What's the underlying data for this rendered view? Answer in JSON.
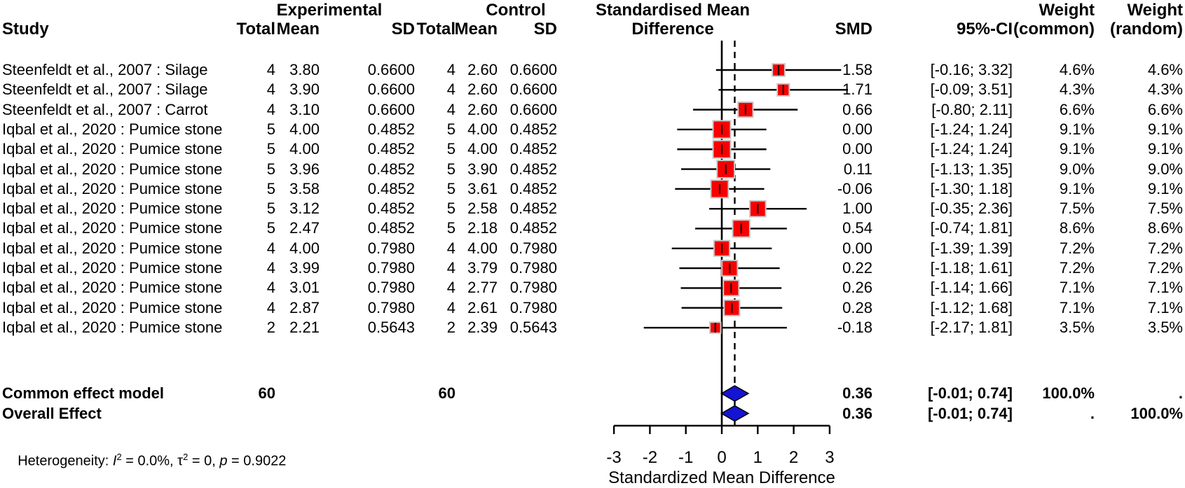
{
  "header": {
    "study": "Study",
    "group_experimental": "Experimental",
    "group_control": "Control",
    "exp_total": "Total",
    "exp_mean": "Mean",
    "exp_sd": "SD",
    "ctl_total": "Total",
    "ctl_mean": "Mean",
    "ctl_sd": "SD",
    "effect_line1": "Standardised Mean",
    "effect_line2": "Difference",
    "smd": "SMD",
    "ci": "95%-CI",
    "weight_common_line1": "Weight",
    "weight_common_line2": "(common)",
    "weight_random_line1": "Weight",
    "weight_random_line2": "(random)"
  },
  "chart_data": {
    "type": "forest",
    "effect_measure": "Standardised Mean Difference",
    "axis": {
      "ticks": [
        -3,
        -2,
        -1,
        0,
        1,
        2,
        3
      ],
      "tick_labels": [
        "-3",
        "-2",
        "-1",
        "0",
        "1",
        "2",
        "3"
      ],
      "label": "Standardized Mean Difference",
      "range": [
        -3,
        3
      ],
      "reference_line": 0,
      "dashed_line_at": 0.36
    },
    "colors": {
      "square": "#f80000",
      "square_border": "#c9c9c9",
      "diamond": "#1414d2",
      "line": "#000000",
      "text": "#000000"
    },
    "rows": [
      {
        "study": "Steenfeldt et al., 2007 : Silage",
        "exp_total": "4",
        "exp_mean": "3.80",
        "exp_sd": "0.6600",
        "ctl_total": "4",
        "ctl_mean": "2.60",
        "ctl_sd": "0.6600",
        "smd_text": "1.58",
        "ci_text": "[-0.16; 3.32]",
        "w_common": "4.6%",
        "w_random": "4.6%",
        "smd": 1.58,
        "lo": -0.16,
        "hi": 3.32,
        "weight": 4.6
      },
      {
        "study": "Steenfeldt et al., 2007 : Silage",
        "exp_total": "4",
        "exp_mean": "3.90",
        "exp_sd": "0.6600",
        "ctl_total": "4",
        "ctl_mean": "2.60",
        "ctl_sd": "0.6600",
        "smd_text": "1.71",
        "ci_text": "[-0.09; 3.51]",
        "w_common": "4.3%",
        "w_random": "4.3%",
        "smd": 1.71,
        "lo": -0.09,
        "hi": 3.51,
        "weight": 4.3
      },
      {
        "study": "Steenfeldt et al., 2007 : Carrot",
        "exp_total": "4",
        "exp_mean": "3.10",
        "exp_sd": "0.6600",
        "ctl_total": "4",
        "ctl_mean": "2.60",
        "ctl_sd": "0.6600",
        "smd_text": "0.66",
        "ci_text": "[-0.80; 2.11]",
        "w_common": "6.6%",
        "w_random": "6.6%",
        "smd": 0.66,
        "lo": -0.8,
        "hi": 2.11,
        "weight": 6.6
      },
      {
        "study": "Iqbal et al., 2020 : Pumice stone",
        "exp_total": "5",
        "exp_mean": "4.00",
        "exp_sd": "0.4852",
        "ctl_total": "5",
        "ctl_mean": "4.00",
        "ctl_sd": "0.4852",
        "smd_text": "0.00",
        "ci_text": "[-1.24; 1.24]",
        "w_common": "9.1%",
        "w_random": "9.1%",
        "smd": 0.0,
        "lo": -1.24,
        "hi": 1.24,
        "weight": 9.1
      },
      {
        "study": "Iqbal et al., 2020 : Pumice stone",
        "exp_total": "5",
        "exp_mean": "4.00",
        "exp_sd": "0.4852",
        "ctl_total": "5",
        "ctl_mean": "4.00",
        "ctl_sd": "0.4852",
        "smd_text": "0.00",
        "ci_text": "[-1.24; 1.24]",
        "w_common": "9.1%",
        "w_random": "9.1%",
        "smd": 0.0,
        "lo": -1.24,
        "hi": 1.24,
        "weight": 9.1
      },
      {
        "study": "Iqbal et al., 2020 : Pumice stone",
        "exp_total": "5",
        "exp_mean": "3.96",
        "exp_sd": "0.4852",
        "ctl_total": "5",
        "ctl_mean": "3.90",
        "ctl_sd": "0.4852",
        "smd_text": "0.11",
        "ci_text": "[-1.13; 1.35]",
        "w_common": "9.0%",
        "w_random": "9.0%",
        "smd": 0.11,
        "lo": -1.13,
        "hi": 1.35,
        "weight": 9.0
      },
      {
        "study": "Iqbal et al., 2020 : Pumice stone",
        "exp_total": "5",
        "exp_mean": "3.58",
        "exp_sd": "0.4852",
        "ctl_total": "5",
        "ctl_mean": "3.61",
        "ctl_sd": "0.4852",
        "smd_text": "-0.06",
        "ci_text": "[-1.30; 1.18]",
        "w_common": "9.1%",
        "w_random": "9.1%",
        "smd": -0.06,
        "lo": -1.3,
        "hi": 1.18,
        "weight": 9.1
      },
      {
        "study": "Iqbal et al., 2020 : Pumice stone",
        "exp_total": "5",
        "exp_mean": "3.12",
        "exp_sd": "0.4852",
        "ctl_total": "5",
        "ctl_mean": "2.58",
        "ctl_sd": "0.4852",
        "smd_text": "1.00",
        "ci_text": "[-0.35; 2.36]",
        "w_common": "7.5%",
        "w_random": "7.5%",
        "smd": 1.0,
        "lo": -0.35,
        "hi": 2.36,
        "weight": 7.5
      },
      {
        "study": "Iqbal et al., 2020 : Pumice stone",
        "exp_total": "5",
        "exp_mean": "2.47",
        "exp_sd": "0.4852",
        "ctl_total": "5",
        "ctl_mean": "2.18",
        "ctl_sd": "0.4852",
        "smd_text": "0.54",
        "ci_text": "[-0.74; 1.81]",
        "w_common": "8.6%",
        "w_random": "8.6%",
        "smd": 0.54,
        "lo": -0.74,
        "hi": 1.81,
        "weight": 8.6
      },
      {
        "study": "Iqbal et al., 2020 : Pumice stone",
        "exp_total": "4",
        "exp_mean": "4.00",
        "exp_sd": "0.7980",
        "ctl_total": "4",
        "ctl_mean": "4.00",
        "ctl_sd": "0.7980",
        "smd_text": "0.00",
        "ci_text": "[-1.39; 1.39]",
        "w_common": "7.2%",
        "w_random": "7.2%",
        "smd": 0.0,
        "lo": -1.39,
        "hi": 1.39,
        "weight": 7.2
      },
      {
        "study": "Iqbal et al., 2020 : Pumice stone",
        "exp_total": "4",
        "exp_mean": "3.99",
        "exp_sd": "0.7980",
        "ctl_total": "4",
        "ctl_mean": "3.79",
        "ctl_sd": "0.7980",
        "smd_text": "0.22",
        "ci_text": "[-1.18; 1.61]",
        "w_common": "7.2%",
        "w_random": "7.2%",
        "smd": 0.22,
        "lo": -1.18,
        "hi": 1.61,
        "weight": 7.2
      },
      {
        "study": "Iqbal et al., 2020 : Pumice stone",
        "exp_total": "4",
        "exp_mean": "3.01",
        "exp_sd": "0.7980",
        "ctl_total": "4",
        "ctl_mean": "2.77",
        "ctl_sd": "0.7980",
        "smd_text": "0.26",
        "ci_text": "[-1.14; 1.66]",
        "w_common": "7.1%",
        "w_random": "7.1%",
        "smd": 0.26,
        "lo": -1.14,
        "hi": 1.66,
        "weight": 7.1
      },
      {
        "study": "Iqbal et al., 2020 : Pumice stone",
        "exp_total": "4",
        "exp_mean": "2.87",
        "exp_sd": "0.7980",
        "ctl_total": "4",
        "ctl_mean": "2.61",
        "ctl_sd": "0.7980",
        "smd_text": "0.28",
        "ci_text": "[-1.12; 1.68]",
        "w_common": "7.1%",
        "w_random": "7.1%",
        "smd": 0.28,
        "lo": -1.12,
        "hi": 1.68,
        "weight": 7.1
      },
      {
        "study": "Iqbal et al., 2020 : Pumice stone",
        "exp_total": "2",
        "exp_mean": "2.21",
        "exp_sd": "0.5643",
        "ctl_total": "2",
        "ctl_mean": "2.39",
        "ctl_sd": "0.5643",
        "smd_text": "-0.18",
        "ci_text": "[-2.17; 1.81]",
        "w_common": "3.5%",
        "w_random": "3.5%",
        "smd": -0.18,
        "lo": -2.17,
        "hi": 1.81,
        "weight": 3.5
      }
    ],
    "summaries": [
      {
        "label": "Common effect model",
        "exp_total": "60",
        "ctl_total": "60",
        "smd_text": "0.36",
        "ci_text": "[-0.01; 0.74]",
        "w_common": "100.0%",
        "w_random": ".",
        "smd": 0.36,
        "lo": -0.01,
        "hi": 0.74
      },
      {
        "label": "Overall Effect",
        "exp_total": "",
        "ctl_total": "",
        "smd_text": "0.36",
        "ci_text": "[-0.01; 0.74]",
        "w_common": ".",
        "w_random": "100.0%",
        "smd": 0.36,
        "lo": -0.01,
        "hi": 0.74
      }
    ],
    "heterogeneity": {
      "label": "Heterogeneity: ",
      "i_symbol": "I",
      "i_sup": "2",
      "i_value": " = 0.0%, ",
      "tau_symbol": "τ",
      "tau_sup": "2",
      "tau_value": " = 0, ",
      "p_symbol": "p",
      "p_value": " = 0.9022"
    }
  }
}
